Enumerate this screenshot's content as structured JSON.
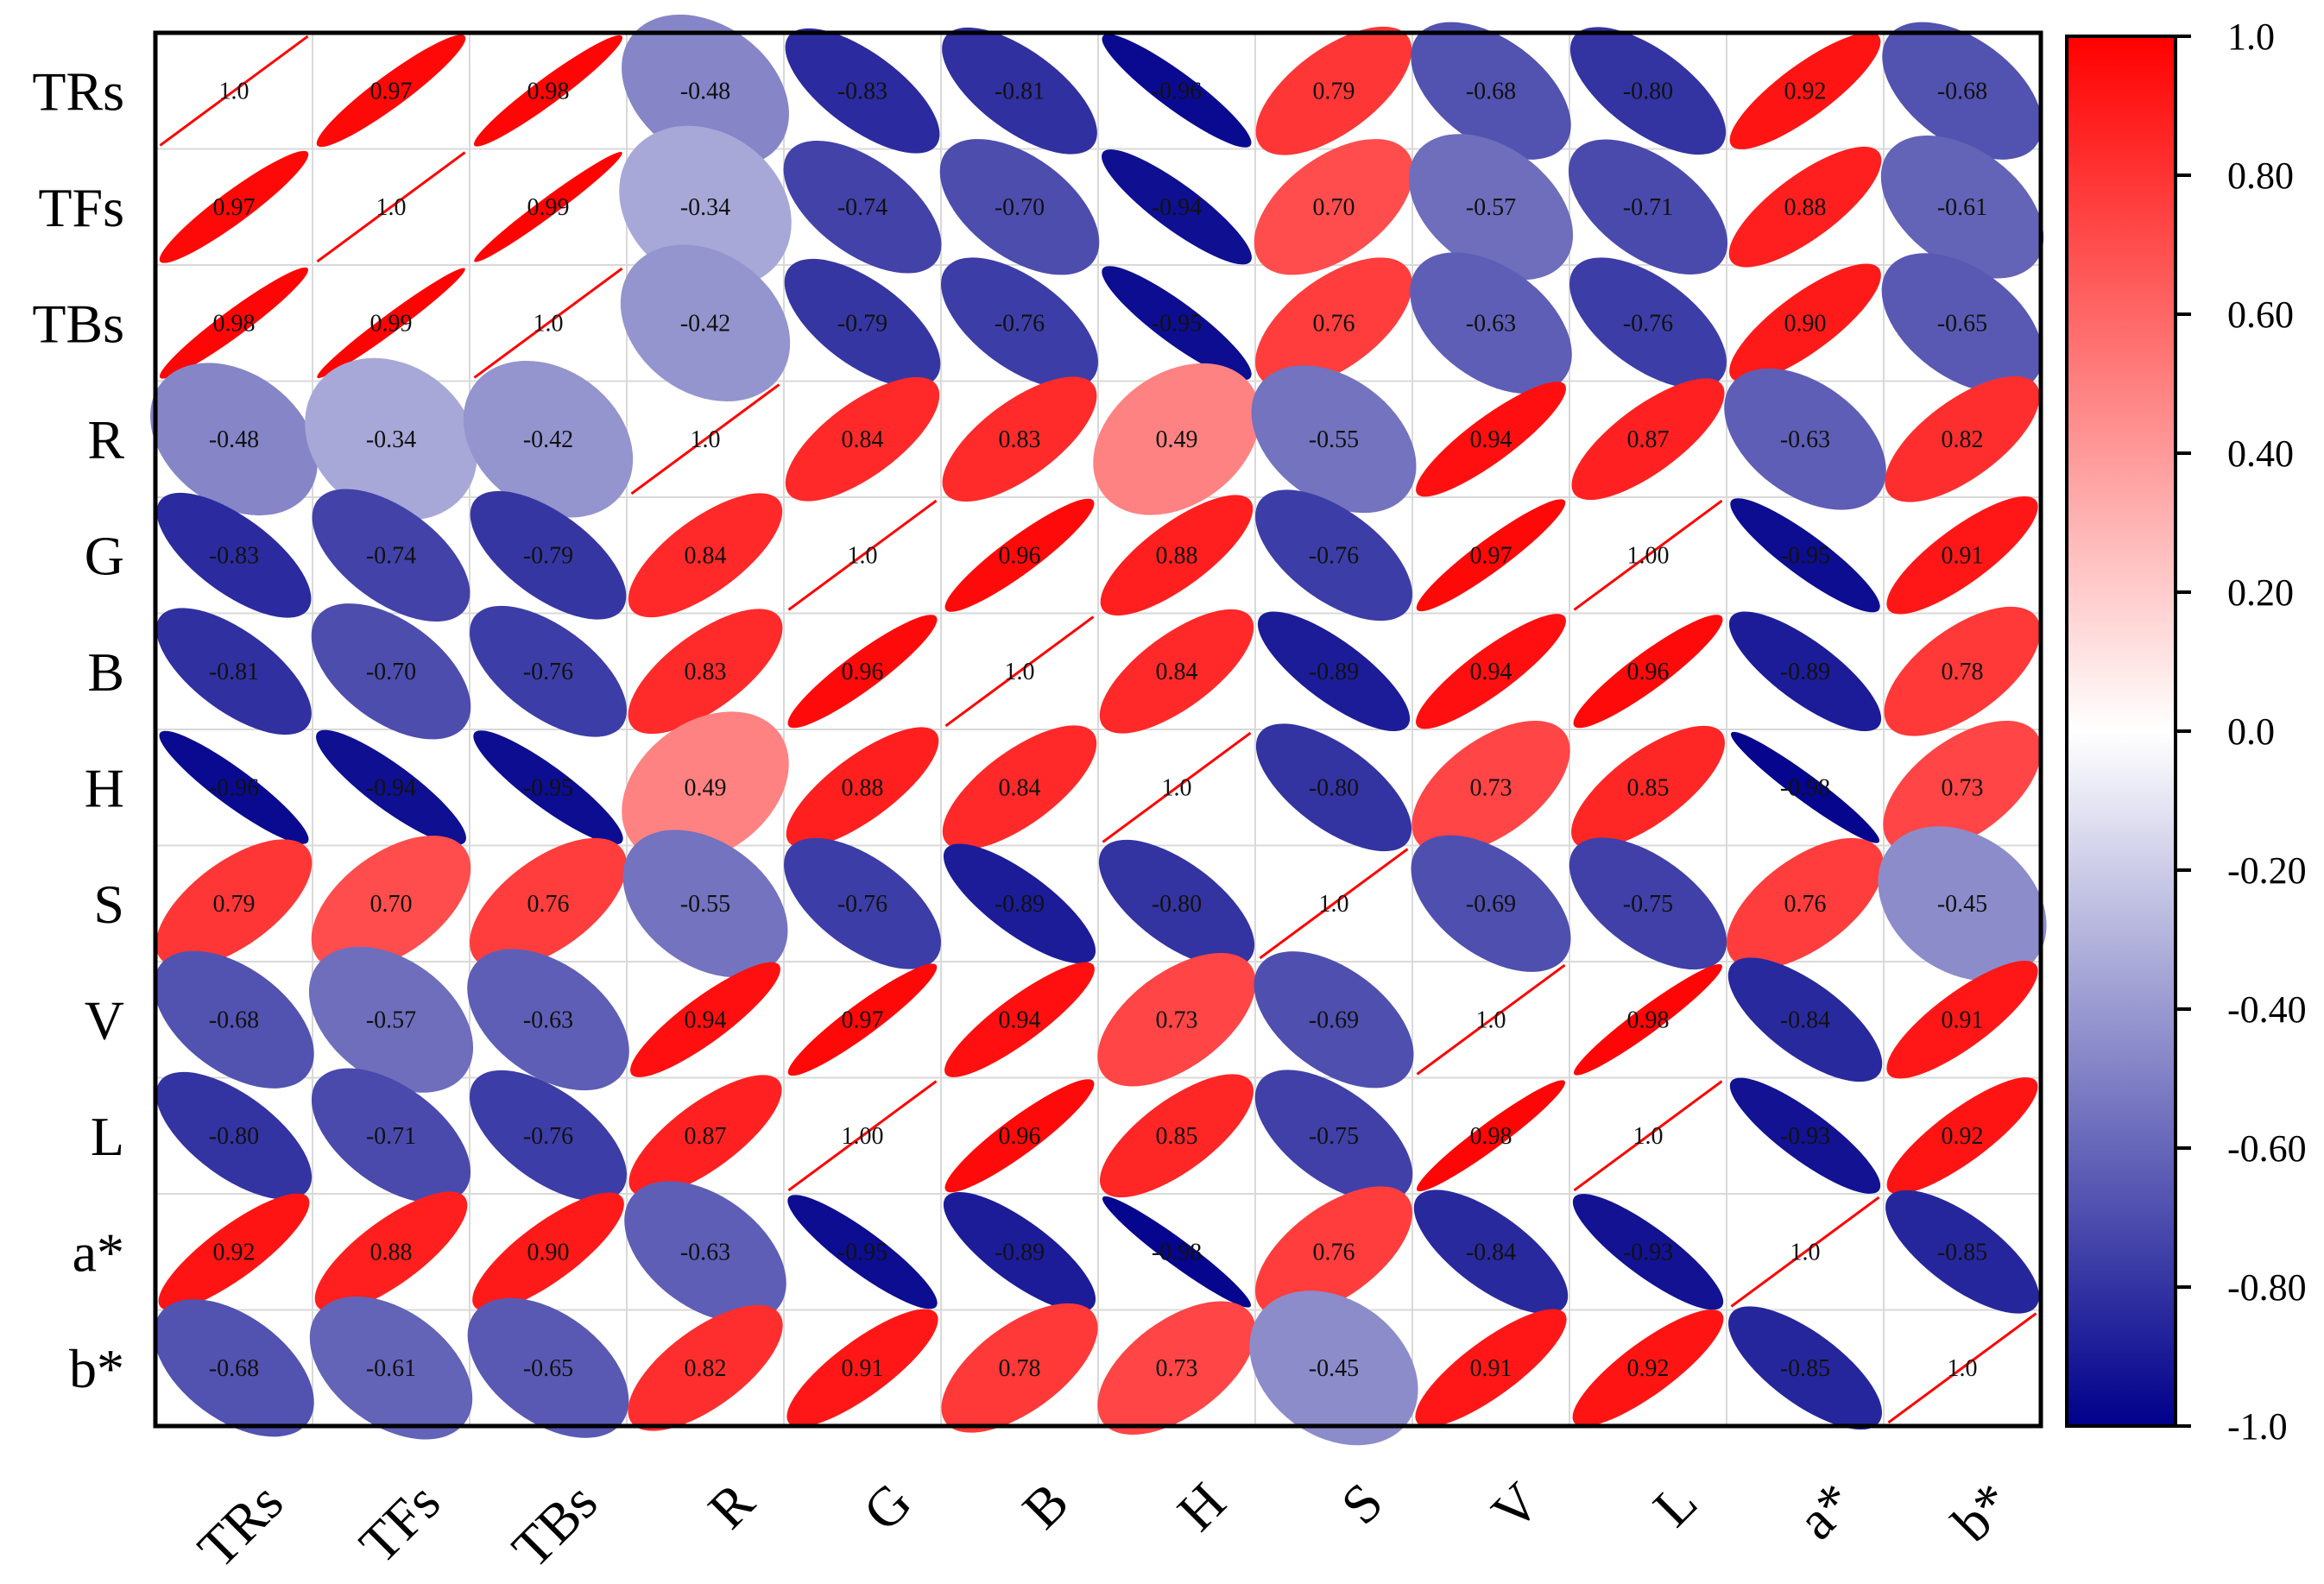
{
  "chart_data": {
    "type": "heatmap",
    "subtype": "correlation-ellipse-matrix",
    "variables": [
      "TRs",
      "TFs",
      "TBs",
      "R",
      "G",
      "B",
      "H",
      "S",
      "V",
      "L",
      "a*",
      "b*"
    ],
    "matrix": [
      [
        1.0,
        0.97,
        0.98,
        -0.48,
        -0.83,
        -0.81,
        -0.96,
        0.79,
        -0.68,
        -0.8,
        0.92,
        -0.68
      ],
      [
        0.97,
        1.0,
        0.99,
        -0.34,
        -0.74,
        -0.7,
        -0.94,
        0.7,
        -0.57,
        -0.71,
        0.88,
        -0.61
      ],
      [
        0.98,
        0.99,
        1.0,
        -0.42,
        -0.79,
        -0.76,
        -0.95,
        0.76,
        -0.63,
        -0.76,
        0.9,
        -0.65
      ],
      [
        -0.48,
        -0.34,
        -0.42,
        1.0,
        0.84,
        0.83,
        0.49,
        -0.55,
        0.94,
        0.87,
        -0.63,
        0.82
      ],
      [
        -0.83,
        -0.74,
        -0.79,
        0.84,
        1.0,
        0.96,
        0.88,
        -0.76,
        0.97,
        1.0,
        -0.95,
        0.91
      ],
      [
        -0.81,
        -0.7,
        -0.76,
        0.83,
        0.96,
        1.0,
        0.84,
        -0.89,
        0.94,
        0.96,
        -0.89,
        0.78
      ],
      [
        -0.96,
        -0.94,
        -0.95,
        0.49,
        0.88,
        0.84,
        1.0,
        -0.8,
        0.73,
        0.85,
        -0.98,
        0.73
      ],
      [
        0.79,
        0.7,
        0.76,
        -0.55,
        -0.76,
        -0.89,
        -0.8,
        1.0,
        -0.69,
        -0.75,
        0.76,
        -0.45
      ],
      [
        -0.68,
        -0.57,
        -0.63,
        0.94,
        0.97,
        0.94,
        0.73,
        -0.69,
        1.0,
        0.98,
        -0.84,
        0.91
      ],
      [
        -0.8,
        -0.71,
        -0.76,
        0.87,
        1.0,
        0.96,
        0.85,
        -0.75,
        0.98,
        1.0,
        -0.93,
        0.92
      ],
      [
        0.92,
        0.88,
        0.9,
        -0.63,
        -0.95,
        -0.89,
        -0.98,
        0.76,
        -0.84,
        -0.93,
        1.0,
        -0.85
      ],
      [
        -0.68,
        -0.61,
        -0.65,
        0.82,
        0.91,
        0.78,
        0.73,
        -0.45,
        0.91,
        0.92,
        -0.85,
        1.0
      ]
    ],
    "cell_labels": [
      [
        "1.0",
        "0.97",
        "0.98",
        "-0.48",
        "-0.83",
        "-0.81",
        "-0.96",
        "0.79",
        "-0.68",
        "-0.80",
        "0.92",
        "-0.68"
      ],
      [
        "0.97",
        "1.0",
        "0.99",
        "-0.34",
        "-0.74",
        "-0.70",
        "-0.94",
        "0.70",
        "-0.57",
        "-0.71",
        "0.88",
        "-0.61"
      ],
      [
        "0.98",
        "0.99",
        "1.0",
        "-0.42",
        "-0.79",
        "-0.76",
        "-0.95",
        "0.76",
        "-0.63",
        "-0.76",
        "0.90",
        "-0.65"
      ],
      [
        "-0.48",
        "-0.34",
        "-0.42",
        "1.0",
        "0.84",
        "0.83",
        "0.49",
        "-0.55",
        "0.94",
        "0.87",
        "-0.63",
        "0.82"
      ],
      [
        "-0.83",
        "-0.74",
        "-0.79",
        "0.84",
        "1.0",
        "0.96",
        "0.88",
        "-0.76",
        "0.97",
        "1.00",
        "-0.95",
        "0.91"
      ],
      [
        "-0.81",
        "-0.70",
        "-0.76",
        "0.83",
        "0.96",
        "1.0",
        "0.84",
        "-0.89",
        "0.94",
        "0.96",
        "-0.89",
        "0.78"
      ],
      [
        "-0.96",
        "-0.94",
        "-0.95",
        "0.49",
        "0.88",
        "0.84",
        "1.0",
        "-0.80",
        "0.73",
        "0.85",
        "-0.98",
        "0.73"
      ],
      [
        "0.79",
        "0.70",
        "0.76",
        "-0.55",
        "-0.76",
        "-0.89",
        "-0.80",
        "1.0",
        "-0.69",
        "-0.75",
        "0.76",
        "-0.45"
      ],
      [
        "-0.68",
        "-0.57",
        "-0.63",
        "0.94",
        "0.97",
        "0.94",
        "0.73",
        "-0.69",
        "1.0",
        "0.98",
        "-0.84",
        "0.91"
      ],
      [
        "-0.80",
        "-0.71",
        "-0.76",
        "0.87",
        "1.00",
        "0.96",
        "0.85",
        "-0.75",
        "0.98",
        "1.0",
        "-0.93",
        "0.92"
      ],
      [
        "0.92",
        "0.88",
        "0.90",
        "-0.63",
        "-0.95",
        "-0.89",
        "-0.98",
        "0.76",
        "-0.84",
        "-0.93",
        "1.0",
        "-0.85"
      ],
      [
        "-0.68",
        "-0.61",
        "-0.65",
        "0.82",
        "0.91",
        "0.78",
        "0.73",
        "-0.45",
        "0.91",
        "0.92",
        "-0.85",
        "1.0"
      ]
    ],
    "title": "",
    "xlabel": "",
    "ylabel": "",
    "colorbar": {
      "range": [
        -1.0,
        1.0
      ],
      "ticks": [
        1.0,
        0.8,
        0.6,
        0.4,
        0.2,
        0.0,
        -0.2,
        -0.4,
        -0.6,
        -0.8,
        -1.0
      ],
      "tick_labels": [
        "1.0",
        "0.80",
        "0.60",
        "0.40",
        "0.20",
        "0.0",
        "-0.20",
        "-0.40",
        "-0.60",
        "-0.80",
        "-1.0"
      ],
      "placement": "right",
      "colors": {
        "negative": "#00008b",
        "zero": "#ffffff",
        "positive": "#ff0000"
      }
    },
    "grid": true,
    "x_tick_rotation": "diagonal"
  }
}
